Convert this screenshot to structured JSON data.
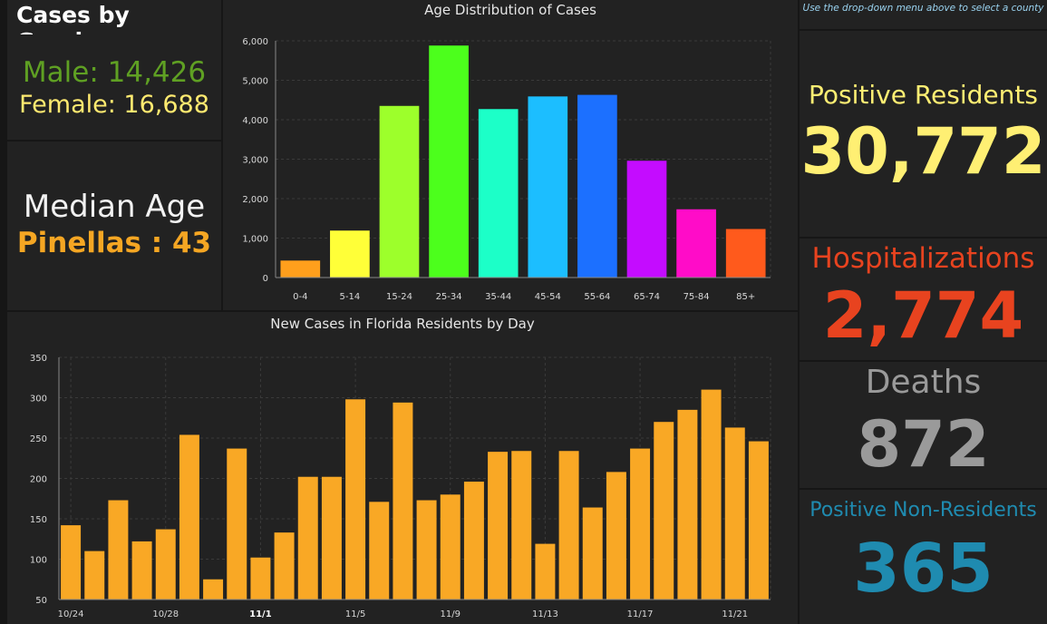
{
  "gender": {
    "title": "Cases by Gender",
    "male_text": "Male: 14,426",
    "female_text": "Female: 16,688",
    "male_color": "#5fa023",
    "female_color": "#ffea70"
  },
  "median": {
    "label": "Median Age",
    "value_text": "Pinellas : 43"
  },
  "hint": "Use the drop-down menu above to select a county",
  "stats": {
    "positive_label": "Positive Residents",
    "positive_value": "30,772",
    "hosp_label": "Hospitalizations",
    "hosp_value": "2,774",
    "deaths_label": "Deaths",
    "deaths_value": "872",
    "nonres_label": "Positive Non-Residents",
    "nonres_value": "365"
  },
  "chart_data": [
    {
      "type": "bar",
      "title": "Age Distribution of Cases",
      "categories": [
        "0-4",
        "5-14",
        "15-24",
        "25-34",
        "35-44",
        "45-54",
        "55-64",
        "65-74",
        "75-84",
        "85+"
      ],
      "values": [
        430,
        1190,
        4350,
        5880,
        4270,
        4590,
        4630,
        2960,
        1730,
        1230
      ],
      "colors": [
        "#ff9f1c",
        "#ffff38",
        "#9dff2b",
        "#4cff1c",
        "#1cffc8",
        "#1cbeff",
        "#1c70ff",
        "#c40cff",
        "#ff0cc8",
        "#ff5a1c"
      ],
      "ylim": [
        0,
        6000
      ],
      "yticks": [
        0,
        1000,
        2000,
        3000,
        4000,
        5000,
        6000
      ],
      "ytick_labels": [
        "0",
        "1,000",
        "2,000",
        "3,000",
        "4,000",
        "5,000",
        "6,000"
      ],
      "grid": true
    },
    {
      "type": "bar",
      "title": "New Cases in Florida Residents by Day",
      "categories": [
        "10/24",
        "10/25",
        "10/26",
        "10/27",
        "10/28",
        "10/29",
        "10/30",
        "10/31",
        "11/1",
        "11/2",
        "11/3",
        "11/4",
        "11/5",
        "11/6",
        "11/7",
        "11/8",
        "11/9",
        "11/10",
        "11/11",
        "11/12",
        "11/13",
        "11/14",
        "11/15",
        "11/16",
        "11/17",
        "11/18",
        "11/19",
        "11/20",
        "11/21",
        "11/22"
      ],
      "values": [
        142,
        110,
        173,
        122,
        137,
        254,
        75,
        237,
        102,
        133,
        202,
        202,
        298,
        171,
        294,
        173,
        180,
        196,
        233,
        234,
        119,
        234,
        164,
        208,
        237,
        270,
        285,
        310,
        263,
        246
      ],
      "xtick_labels": [
        "10/24",
        "10/28",
        "11/1",
        "11/5",
        "11/9",
        "11/13",
        "11/17",
        "11/21"
      ],
      "xtick_index": [
        0,
        4,
        8,
        12,
        16,
        20,
        24,
        28
      ],
      "bold_ticks": [
        "11/1"
      ],
      "color": "#f9a825",
      "ylim": [
        50,
        350
      ],
      "yticks": [
        50,
        100,
        150,
        200,
        250,
        300,
        350
      ],
      "grid": true
    }
  ]
}
